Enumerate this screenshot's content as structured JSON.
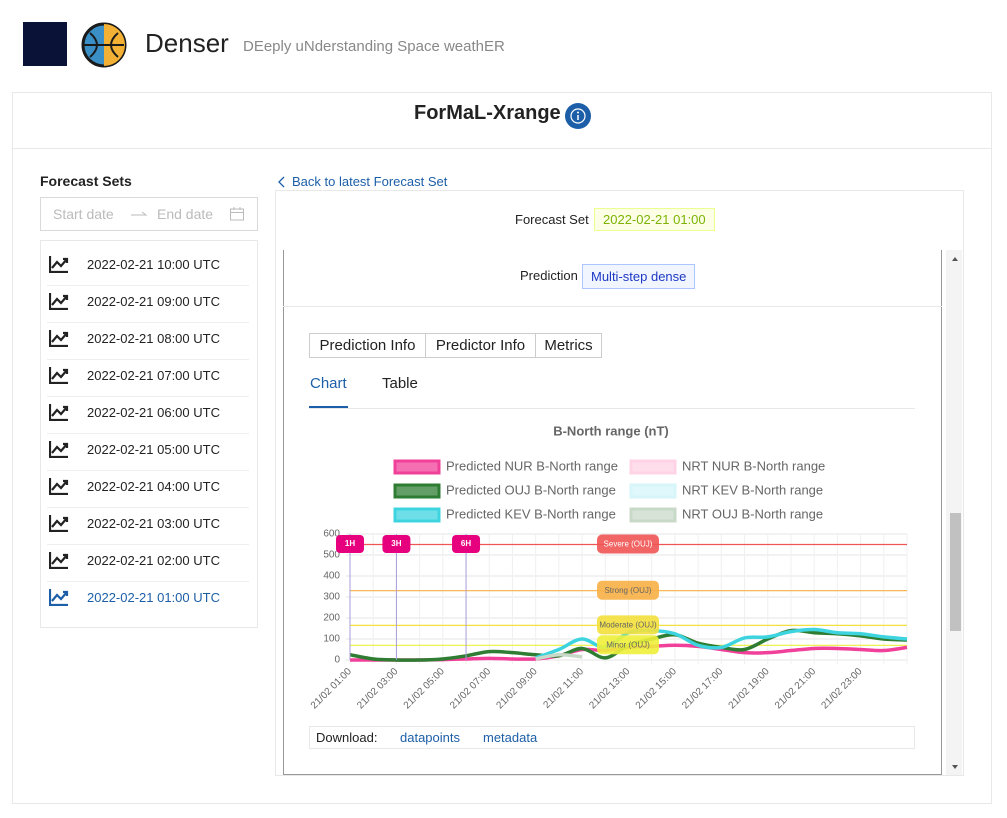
{
  "header": {
    "title": "Denser",
    "subtitle": "DEeply uNderstanding Space weathER"
  },
  "page_title": "ForMaL-Xrange",
  "sidebar": {
    "title": "Forecast Sets",
    "start_placeholder": "Start date",
    "end_placeholder": "End date",
    "selected_index": 9,
    "items": [
      "2022-02-21 10:00 UTC",
      "2022-02-21 09:00 UTC",
      "2022-02-21 08:00 UTC",
      "2022-02-21 07:00 UTC",
      "2022-02-21 06:00 UTC",
      "2022-02-21 05:00 UTC",
      "2022-02-21 04:00 UTC",
      "2022-02-21 03:00 UTC",
      "2022-02-21 02:00 UTC",
      "2022-02-21 01:00 UTC"
    ]
  },
  "back_link": "Back to latest Forecast Set",
  "forecast_set": {
    "label": "Forecast Set",
    "value": "2022-02-21 01:00"
  },
  "prediction": {
    "label": "Prediction",
    "value": "Multi-step dense"
  },
  "tabs": [
    "Prediction Info",
    "Predictor Info",
    "Metrics"
  ],
  "view_tabs": [
    "Chart",
    "Table"
  ],
  "download": {
    "label": "Download:",
    "links": [
      "datapoints",
      "metadata"
    ]
  },
  "chart_data": {
    "type": "line",
    "title": "B-North range (nT)",
    "categories": [
      "21/02 01:00",
      null,
      "21/02 03:00",
      null,
      "21/02 05:00",
      null,
      "21/02 07:00",
      null,
      "21/02 09:00",
      null,
      "21/02 11:00",
      null,
      "21/02 13:00",
      null,
      "21/02 15:00",
      null,
      "21/02 17:00",
      null,
      "21/02 19:00",
      null,
      "21/02 21:00",
      null,
      "21/02 23:00",
      null,
      null
    ],
    "ylim": [
      0,
      600
    ],
    "yticks": [
      0,
      100,
      200,
      300,
      400,
      500,
      600
    ],
    "grid": true,
    "series": [
      {
        "name": "Predicted NUR B-North range",
        "color": "#f0409a",
        "values": [
          0,
          0,
          0,
          0,
          2,
          5,
          8,
          5,
          5,
          20,
          50,
          45,
          60,
          65,
          70,
          65,
          50,
          35,
          35,
          45,
          55,
          55,
          50,
          45,
          60
        ]
      },
      {
        "name": "NRT NUR B-North range",
        "color": "#ffd3e6",
        "values": [
          null,
          null,
          null,
          null,
          null,
          null,
          null,
          null,
          null,
          null,
          null,
          null,
          null,
          null,
          null,
          null,
          null,
          null,
          null,
          null,
          null,
          null,
          null,
          null,
          null
        ]
      },
      {
        "name": "Predicted OUJ B-North range",
        "color": "#2e7d32",
        "values": [
          25,
          5,
          0,
          0,
          5,
          20,
          40,
          35,
          25,
          20,
          55,
          10,
          70,
          100,
          120,
          80,
          60,
          50,
          100,
          140,
          130,
          125,
          115,
          100,
          95
        ]
      },
      {
        "name": "NRT KEV B-North range",
        "color": "#d6f6fa",
        "values": [
          null,
          null,
          null,
          null,
          null,
          null,
          null,
          null,
          null,
          null,
          null,
          null,
          null,
          null,
          null,
          null,
          null,
          null,
          null,
          null,
          null,
          null,
          null,
          null,
          null
        ]
      },
      {
        "name": "Predicted KEV B-North range",
        "color": "#3dd4e0",
        "values": [
          null,
          null,
          null,
          null,
          null,
          null,
          null,
          null,
          10,
          50,
          100,
          60,
          130,
          140,
          125,
          70,
          60,
          105,
          110,
          135,
          145,
          130,
          125,
          110,
          100
        ]
      },
      {
        "name": "NRT OUJ B-North range",
        "color": "#c8d9c8",
        "values": [
          null,
          null,
          null,
          null,
          null,
          null,
          null,
          null,
          5,
          25,
          15,
          null,
          null,
          null,
          null,
          null,
          null,
          null,
          null,
          null,
          null,
          null,
          null,
          null,
          null
        ]
      }
    ],
    "vlines": [
      {
        "label": "1H",
        "index": 0
      },
      {
        "label": "3H",
        "index": 2
      },
      {
        "label": "6H",
        "index": 5
      }
    ],
    "thresholds": [
      {
        "label": "Severe (OUJ)",
        "value": 550,
        "color": "#f05454"
      },
      {
        "label": "Strong (OUJ)",
        "value": 330,
        "color": "#f7b046"
      },
      {
        "label": "Moderate (OUJ)",
        "value": 165,
        "color": "#f3e03c"
      },
      {
        "label": "Minor (OUJ)",
        "value": 70,
        "color": "#eef03a"
      }
    ]
  }
}
